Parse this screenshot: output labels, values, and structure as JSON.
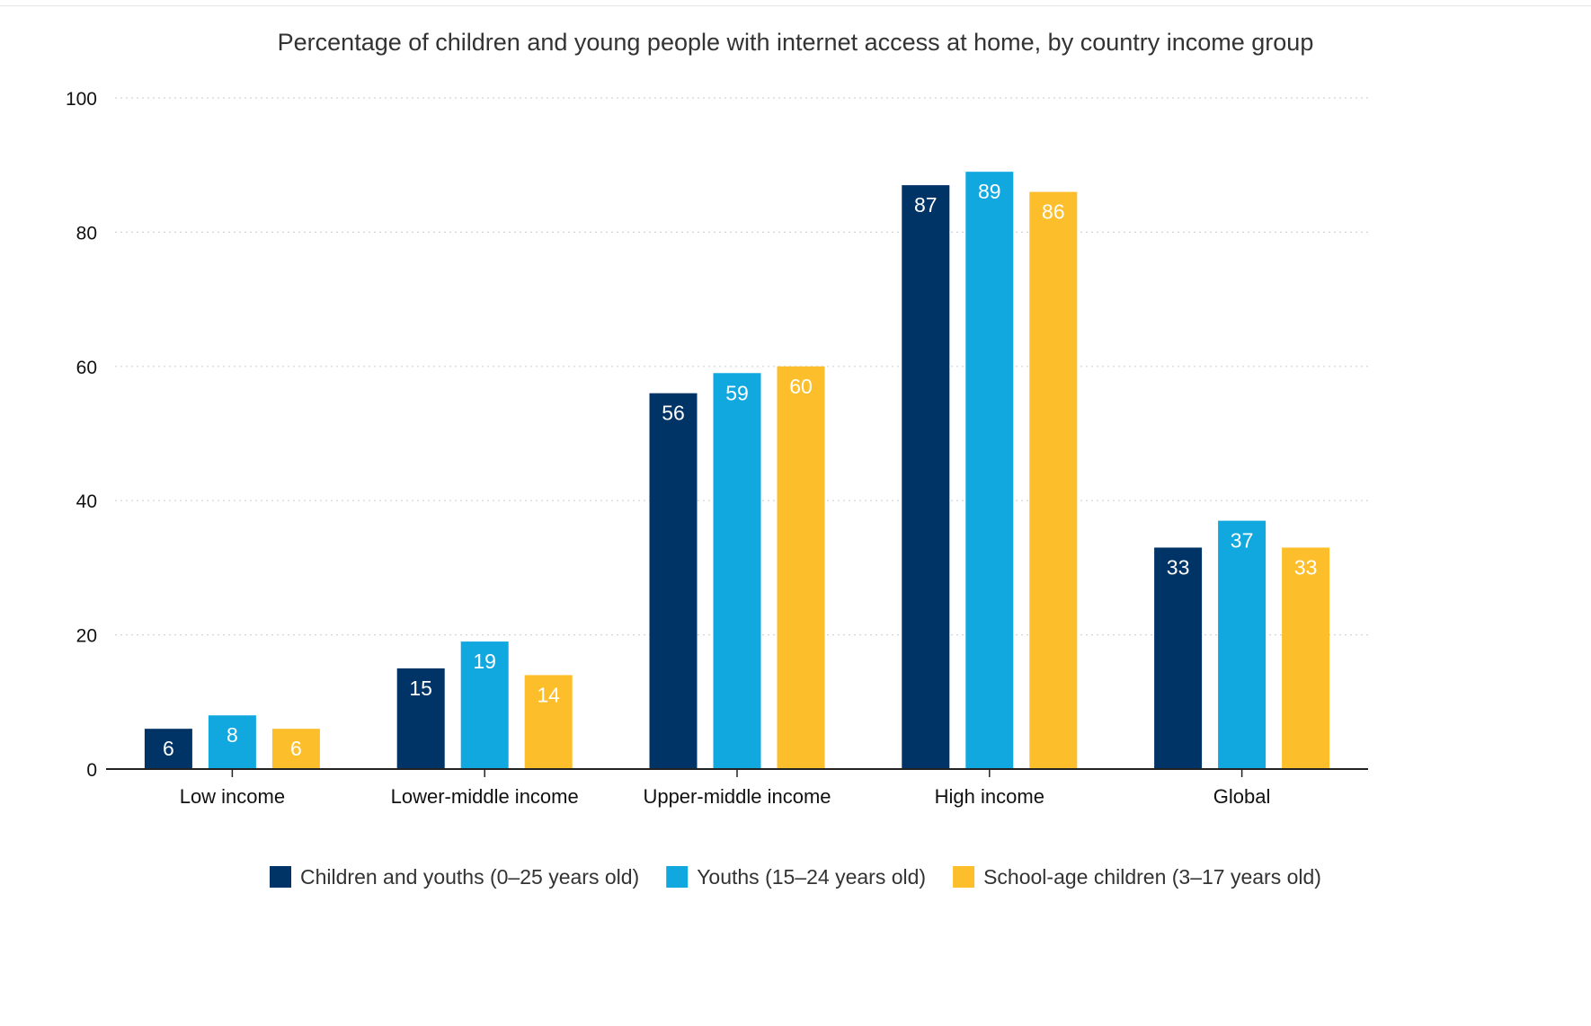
{
  "chart_data": {
    "type": "bar",
    "title": "Percentage of children and young people with internet access at home, by country income group",
    "xlabel": "",
    "ylabel": "",
    "ylim": [
      0,
      100
    ],
    "yticks": [
      "0",
      "20",
      "40",
      "60",
      "80",
      "100"
    ],
    "grid": true,
    "legend_position": "bottom",
    "categories": [
      "Low income",
      "Lower-middle income",
      "Upper-middle income",
      "High income",
      "Global"
    ],
    "series": [
      {
        "name": "Children and youths (0–25 years old)",
        "color": "#003366",
        "label_color": "#ffffff",
        "values": [
          6,
          15,
          56,
          87,
          33
        ]
      },
      {
        "name": "Youths (15–24 years old)",
        "color": "#11a8e0",
        "label_color": "#ffffff",
        "values": [
          8,
          19,
          59,
          89,
          37
        ]
      },
      {
        "name": "School-age children (3–17 years old)",
        "color": "#fcbf2b",
        "label_color": "#ffffff",
        "values": [
          6,
          14,
          60,
          86,
          33
        ]
      }
    ]
  }
}
